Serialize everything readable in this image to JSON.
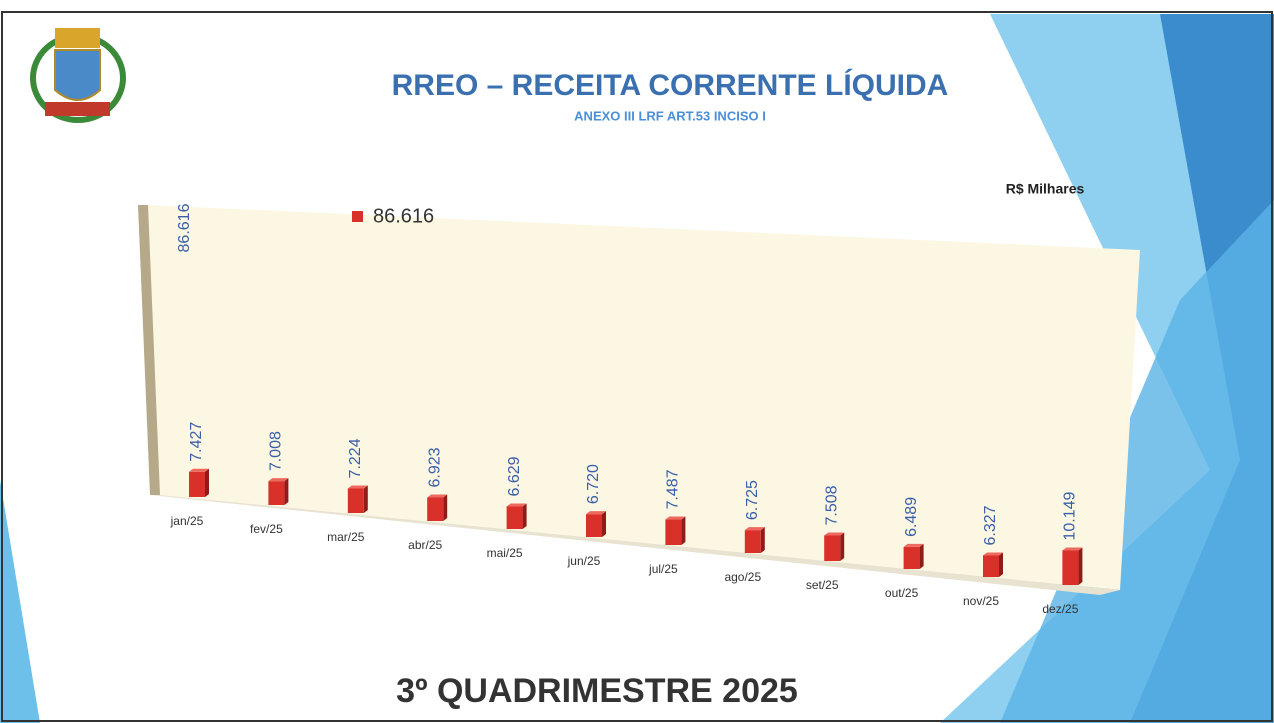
{
  "header": {
    "title": "RREO – RECEITA CORRENTE LÍQUIDA",
    "subtitle": "ANEXO III LRF ART.53 INCISO I",
    "unit": "R$ Milhares"
  },
  "chart_data": {
    "type": "bar3d",
    "categories": [
      "jan/25",
      "fev/25",
      "mar/25",
      "abr/25",
      "mai/25",
      "jun/25",
      "jul/25",
      "ago/25",
      "set/25",
      "out/25",
      "nov/25",
      "dez/25"
    ],
    "series": [
      {
        "name": "86.616",
        "color": "#d9302a",
        "values": [
          7427,
          7008,
          7224,
          6923,
          6629,
          6720,
          7487,
          6725,
          7508,
          6489,
          6327,
          10149
        ],
        "value_labels": [
          "7.427",
          "7.008",
          "7.224",
          "6.923",
          "6.629",
          "6.720",
          "7.487",
          "6.725",
          "7.508",
          "6.489",
          "6.327",
          "10.149"
        ]
      }
    ]
  },
  "footer": {
    "text": "3º QUADRIMESTRE 2025"
  }
}
